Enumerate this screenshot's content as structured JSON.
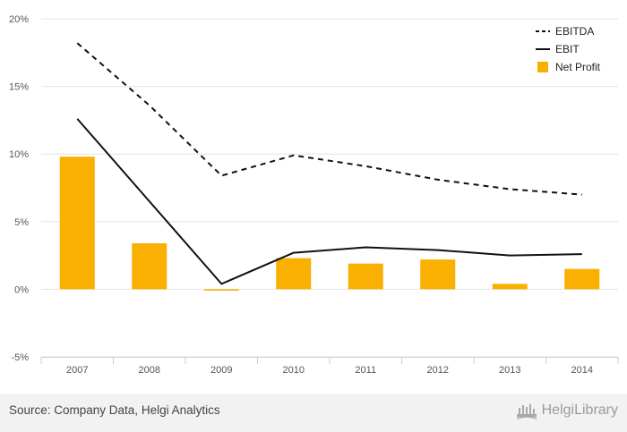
{
  "chart_data": {
    "type": "bar+line",
    "categories": [
      "2007",
      "2008",
      "2009",
      "2010",
      "2011",
      "2012",
      "2013",
      "2014"
    ],
    "series": [
      {
        "name": "EBITDA",
        "kind": "line",
        "style": "dashed",
        "color": "#111111",
        "values": [
          18.2,
          13.6,
          8.4,
          9.9,
          9.1,
          8.1,
          7.4,
          7.0
        ]
      },
      {
        "name": "EBIT",
        "kind": "line",
        "style": "solid",
        "color": "#111111",
        "values": [
          12.6,
          6.5,
          0.4,
          2.7,
          3.1,
          2.9,
          2.5,
          2.6
        ]
      },
      {
        "name": "Net Profit",
        "kind": "bar",
        "color": "#f9b000",
        "values": [
          9.8,
          3.4,
          -0.1,
          2.3,
          1.9,
          2.2,
          0.4,
          1.5
        ]
      }
    ],
    "y_ticks": [
      "20%",
      "15%",
      "10%",
      "5%",
      "0%",
      "-5%"
    ],
    "y_tick_values": [
      20,
      15,
      10,
      5,
      0,
      -5
    ],
    "ylim": [
      -5,
      20
    ],
    "grid": true,
    "legend_position": "top-right"
  },
  "footer": {
    "source": "Source: Company Data, Helgi Analytics",
    "brand": "HelgiLibrary",
    "brand_icon": "helgi-library-logo-icon"
  }
}
